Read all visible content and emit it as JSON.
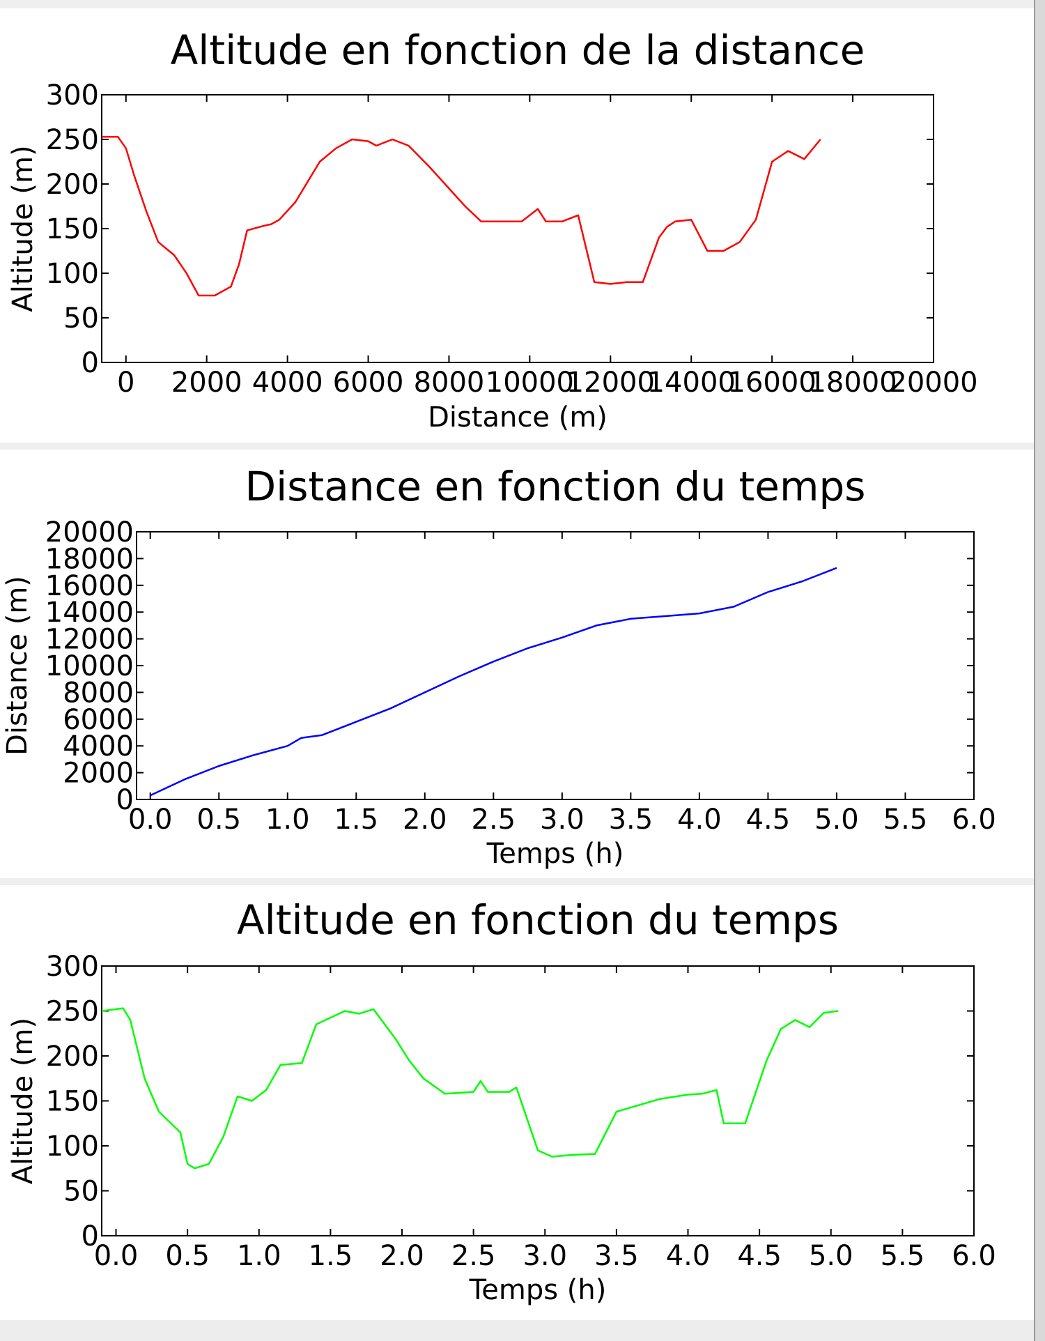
{
  "status_bar": {
    "text": ""
  },
  "chart_data": [
    {
      "type": "line",
      "title": "Altitude en fonction de la distance",
      "xlabel": "Distance (m)",
      "ylabel": "Altitude (m)",
      "xlim": [
        -600,
        20000
      ],
      "ylim": [
        0,
        300
      ],
      "xticks": [
        0,
        2000,
        4000,
        6000,
        8000,
        10000,
        12000,
        14000,
        16000,
        18000,
        20000
      ],
      "yticks": [
        0,
        50,
        100,
        150,
        200,
        250,
        300
      ],
      "xtick_labels": [
        "0",
        "2000",
        "4000",
        "6000",
        "8000",
        "10000",
        "12000",
        "14000",
        "16000",
        "18000",
        "20000"
      ],
      "ytick_labels": [
        "0",
        "50",
        "100",
        "150",
        "200",
        "250",
        "300"
      ],
      "grid": false,
      "series": [
        {
          "color": "#ff0000",
          "x": [
            -600,
            -200,
            0,
            200,
            500,
            800,
            1200,
            1500,
            1800,
            2200,
            2600,
            2800,
            3000,
            3400,
            3600,
            3800,
            4200,
            4400,
            4800,
            5200,
            5600,
            6000,
            6200,
            6600,
            7000,
            7500,
            8000,
            8400,
            8800,
            9000,
            9200,
            9400,
            9800,
            10200,
            10400,
            10600,
            10800,
            11200,
            11600,
            12000,
            12400,
            12800,
            13200,
            13400,
            13600,
            14000,
            14400,
            14800,
            15200,
            15600,
            16000,
            16400,
            16800,
            17200
          ],
          "y": [
            253,
            253,
            240,
            210,
            170,
            135,
            120,
            100,
            75,
            75,
            85,
            110,
            148,
            153,
            155,
            160,
            180,
            195,
            225,
            240,
            250,
            248,
            243,
            250,
            243,
            220,
            195,
            175,
            158,
            158,
            158,
            158,
            158,
            172,
            158,
            158,
            158,
            165,
            90,
            88,
            90,
            90,
            140,
            152,
            158,
            160,
            125,
            125,
            135,
            160,
            225,
            237,
            228,
            250
          ]
        }
      ]
    },
    {
      "type": "line",
      "title": "Distance en fonction du temps",
      "xlabel": "Temps (h)",
      "ylabel": "Distance (m)",
      "xlim": [
        -0.1,
        6.0
      ],
      "ylim": [
        0,
        20000
      ],
      "xticks": [
        0.0,
        0.5,
        1.0,
        1.5,
        2.0,
        2.5,
        3.0,
        3.5,
        4.0,
        4.5,
        5.0,
        5.5,
        6.0
      ],
      "yticks": [
        0,
        2000,
        4000,
        6000,
        8000,
        10000,
        12000,
        14000,
        16000,
        18000,
        20000
      ],
      "xtick_labels": [
        "0.0",
        "0.5",
        "1.0",
        "1.5",
        "2.0",
        "2.5",
        "3.0",
        "3.5",
        "4.0",
        "4.5",
        "5.0",
        "5.5",
        "6.0"
      ],
      "ytick_labels": [
        "0",
        "2000",
        "4000",
        "6000",
        "8000",
        "10000",
        "12000",
        "14000",
        "16000",
        "18000",
        "20000"
      ],
      "grid": false,
      "series": [
        {
          "color": "#0000ff",
          "x": [
            0,
            0.25,
            0.5,
            0.75,
            1.0,
            1.1,
            1.25,
            1.5,
            1.75,
            2.0,
            2.25,
            2.5,
            2.75,
            3.0,
            3.25,
            3.5,
            3.75,
            4.0,
            4.25,
            4.5,
            4.75,
            5.0
          ],
          "y": [
            300,
            1500,
            2500,
            3300,
            4000,
            4600,
            4800,
            5800,
            6800,
            8000,
            9200,
            10300,
            11300,
            12100,
            13000,
            13500,
            13700,
            13900,
            14400,
            15500,
            16300,
            17300
          ]
        }
      ]
    },
    {
      "type": "line",
      "title": "Altitude en fonction du temps",
      "xlabel": "Temps (h)",
      "ylabel": "Altitude (m)",
      "xlim": [
        -0.1,
        6.0
      ],
      "ylim": [
        0,
        300
      ],
      "xticks": [
        0.0,
        0.5,
        1.0,
        1.5,
        2.0,
        2.5,
        3.0,
        3.5,
        4.0,
        4.5,
        5.0,
        5.5,
        6.0
      ],
      "yticks": [
        0,
        50,
        100,
        150,
        200,
        250,
        300
      ],
      "xtick_labels": [
        "0.0",
        "0.5",
        "1.0",
        "1.5",
        "2.0",
        "2.5",
        "3.0",
        "3.5",
        "4.0",
        "4.5",
        "5.0",
        "5.5",
        "6.0"
      ],
      "ytick_labels": [
        "0",
        "50",
        "100",
        "150",
        "200",
        "250",
        "300"
      ],
      "grid": false,
      "series": [
        {
          "color": "#00ff00",
          "x": [
            -0.1,
            0.05,
            0.1,
            0.2,
            0.3,
            0.45,
            0.5,
            0.55,
            0.65,
            0.75,
            0.85,
            0.95,
            1.05,
            1.15,
            1.3,
            1.4,
            1.6,
            1.7,
            1.8,
            1.95,
            2.05,
            2.15,
            2.3,
            2.5,
            2.55,
            2.6,
            2.75,
            2.8,
            2.95,
            3.05,
            3.2,
            3.35,
            3.5,
            3.8,
            4.0,
            4.1,
            4.2,
            4.25,
            4.4,
            4.55,
            4.65,
            4.75,
            4.85,
            4.95,
            5.05
          ],
          "y": [
            250,
            253,
            240,
            175,
            138,
            115,
            80,
            75,
            80,
            110,
            155,
            150,
            162,
            190,
            192,
            235,
            250,
            247,
            252,
            220,
            195,
            175,
            158,
            160,
            172,
            160,
            160,
            165,
            95,
            88,
            90,
            91,
            138,
            152,
            157,
            158,
            162,
            125,
            125,
            195,
            230,
            240,
            232,
            248,
            250
          ]
        }
      ]
    }
  ]
}
